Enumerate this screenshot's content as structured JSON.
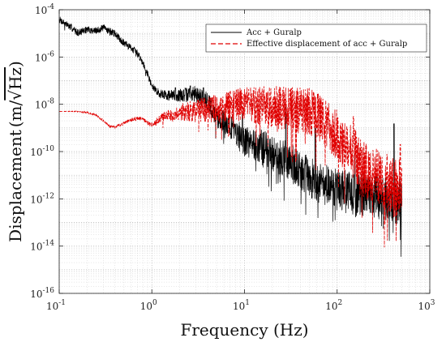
{
  "chart_data": {
    "type": "line",
    "xlabel": "Frequency (Hz)",
    "ylabel_prefix": "Displacement",
    "ylabel_units": "(m/",
    "ylabel_sqrt": "Hz",
    "ylabel_close": ")",
    "x_scale": "log",
    "y_scale": "log",
    "xlim": [
      0.1,
      1000
    ],
    "ylim": [
      1e-16,
      0.0001
    ],
    "grid": true,
    "legend_position": "top-right",
    "x_ticks": [
      {
        "value": 0.1,
        "base": "10",
        "exp": "-1"
      },
      {
        "value": 1,
        "base": "10",
        "exp": "0"
      },
      {
        "value": 10,
        "base": "10",
        "exp": "1"
      },
      {
        "value": 100,
        "base": "10",
        "exp": "2"
      },
      {
        "value": 1000,
        "base": "10",
        "exp": "3"
      }
    ],
    "y_ticks": [
      {
        "value": 0.0001,
        "base": "10",
        "exp": "-4"
      },
      {
        "value": 1e-06,
        "base": "10",
        "exp": "-6"
      },
      {
        "value": 1e-08,
        "base": "10",
        "exp": "-8"
      },
      {
        "value": 1e-10,
        "base": "10",
        "exp": "-10"
      },
      {
        "value": 1e-12,
        "base": "10",
        "exp": "-12"
      },
      {
        "value": 1e-14,
        "base": "10",
        "exp": "-14"
      },
      {
        "value": 1e-16,
        "base": "10",
        "exp": "-16"
      }
    ],
    "series": [
      {
        "name": "Acc + Guralp",
        "color": "#000000",
        "dash": "solid",
        "envelope": [
          [
            0.1,
            4e-05
          ],
          [
            0.13,
            2e-05
          ],
          [
            0.16,
            1.1e-05
          ],
          [
            0.2,
            1.5e-05
          ],
          [
            0.25,
            1.3e-05
          ],
          [
            0.3,
            1.8e-05
          ],
          [
            0.4,
            1e-05
          ],
          [
            0.5,
            4e-06
          ],
          [
            0.6,
            2.5e-06
          ],
          [
            0.7,
            1.5e-06
          ],
          [
            0.8,
            6e-07
          ],
          [
            0.9,
            2e-07
          ],
          [
            1.0,
            6e-08
          ],
          [
            1.2,
            3e-08
          ],
          [
            1.5,
            2.5e-08
          ],
          [
            2.0,
            2.5e-08
          ],
          [
            3.0,
            3e-08
          ],
          [
            4.0,
            1.5e-08
          ],
          [
            5.0,
            3e-09
          ],
          [
            7.0,
            1.5e-09
          ],
          [
            10,
            3e-10
          ],
          [
            15,
            2e-10
          ],
          [
            20,
            1e-10
          ],
          [
            30,
            5e-11
          ],
          [
            50,
            1e-11
          ],
          [
            70,
            5e-12
          ],
          [
            100,
            3e-12
          ],
          [
            150,
            2e-12
          ],
          [
            200,
            2e-12
          ],
          [
            300,
            1.5e-12
          ],
          [
            400,
            1e-12
          ],
          [
            500,
            1e-12
          ]
        ],
        "peaks": [
          [
            1.8,
            5e-08
          ],
          [
            2.6,
            6e-08
          ],
          [
            3.6,
            5e-08
          ],
          [
            9.5,
            4e-09
          ],
          [
            28,
            1e-08
          ],
          [
            58,
            1e-09
          ],
          [
            155,
            8e-11
          ],
          [
            410,
            1.5e-09
          ]
        ],
        "amp_seed": [
          [
            1.0,
            0.15
          ],
          [
            5.0,
            0.45
          ],
          [
            20,
            0.8
          ],
          [
            100,
            0.9
          ],
          [
            500,
            1.0
          ]
        ],
        "seed": 7
      },
      {
        "name": "Effective displacement of acc + Guralp",
        "color": "#e00000",
        "dash": "dashed",
        "envelope": [
          [
            0.1,
            5e-09
          ],
          [
            0.15,
            5e-09
          ],
          [
            0.2,
            4.5e-09
          ],
          [
            0.25,
            3.5e-09
          ],
          [
            0.3,
            2e-09
          ],
          [
            0.35,
            1.2e-09
          ],
          [
            0.4,
            1.1e-09
          ],
          [
            0.5,
            1.6e-09
          ],
          [
            0.6,
            2.2e-09
          ],
          [
            0.7,
            2.6e-09
          ],
          [
            0.8,
            2.4e-09
          ],
          [
            0.9,
            1.6e-09
          ],
          [
            1.0,
            1.4e-09
          ],
          [
            1.3,
            3e-09
          ],
          [
            2.0,
            5e-09
          ],
          [
            4.0,
            7e-09
          ],
          [
            7.0,
            1e-08
          ],
          [
            10,
            1.2e-08
          ],
          [
            15,
            1e-08
          ],
          [
            20,
            1e-08
          ],
          [
            30,
            8e-09
          ],
          [
            50,
            6e-09
          ],
          [
            70,
            3e-09
          ],
          [
            100,
            6e-10
          ],
          [
            150,
            1e-10
          ],
          [
            200,
            2e-11
          ],
          [
            300,
            1e-11
          ],
          [
            400,
            4e-12
          ],
          [
            500,
            6e-12
          ]
        ],
        "peaks": [
          [
            31,
            4e-08
          ],
          [
            70,
            1e-08
          ],
          [
            150,
            3e-09
          ],
          [
            480,
            2e-10
          ]
        ],
        "amp_seed": [
          [
            0.1,
            0.0
          ],
          [
            1.0,
            0.1
          ],
          [
            3.0,
            0.5
          ],
          [
            20,
            0.9
          ],
          [
            100,
            1.1
          ],
          [
            500,
            1.3
          ]
        ],
        "seed": 13
      }
    ]
  }
}
